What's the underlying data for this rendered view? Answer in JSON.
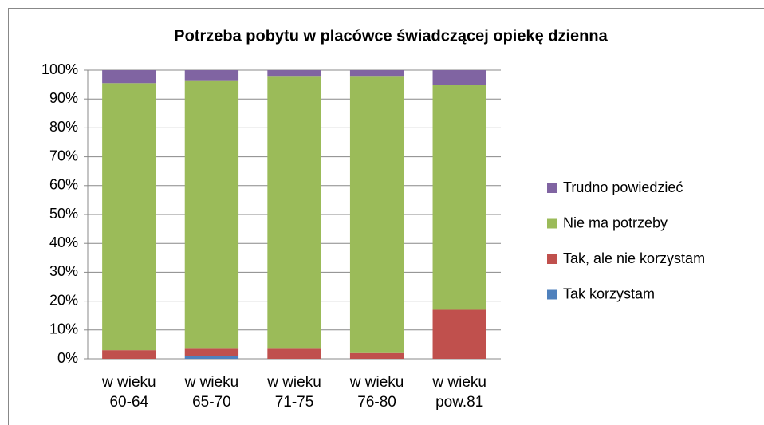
{
  "chart_data": {
    "type": "stacked_bar",
    "title": "Potrzeba pobytu w placówce świadczącej opiekę dzienna",
    "categories": [
      "w wieku 60-64",
      "w wieku 65-70",
      "w wieku 71-75",
      "w wieku 76-80",
      "w wieku pow.81"
    ],
    "series": [
      {
        "name": "Tak  korzystam",
        "color": "#4f81bd",
        "values": [
          0,
          1,
          0,
          0,
          0
        ]
      },
      {
        "name": "Tak, ale nie korzystam",
        "color": "#c0504d",
        "values": [
          3,
          2.5,
          3.5,
          2,
          17
        ]
      },
      {
        "name": "Nie ma potrzeby",
        "color": "#9bbb59",
        "values": [
          92.5,
          93,
          94.5,
          96,
          78
        ]
      },
      {
        "name": "Trudno powiedzieć",
        "color": "#8064a2",
        "values": [
          4.5,
          3.5,
          2,
          2,
          5
        ]
      }
    ],
    "ylim": [
      0,
      100
    ],
    "yticks": [
      {
        "value": 0,
        "label": "0%"
      },
      {
        "value": 10,
        "label": "10%"
      },
      {
        "value": 20,
        "label": "20%"
      },
      {
        "value": 30,
        "label": "30%"
      },
      {
        "value": 40,
        "label": "40%"
      },
      {
        "value": 50,
        "label": "50%"
      },
      {
        "value": 60,
        "label": "60%"
      },
      {
        "value": 70,
        "label": "70%"
      },
      {
        "value": 80,
        "label": "80%"
      },
      {
        "value": 90,
        "label": "90%"
      },
      {
        "value": 100,
        "label": "100%"
      }
    ],
    "grid": true,
    "legend": "right"
  }
}
